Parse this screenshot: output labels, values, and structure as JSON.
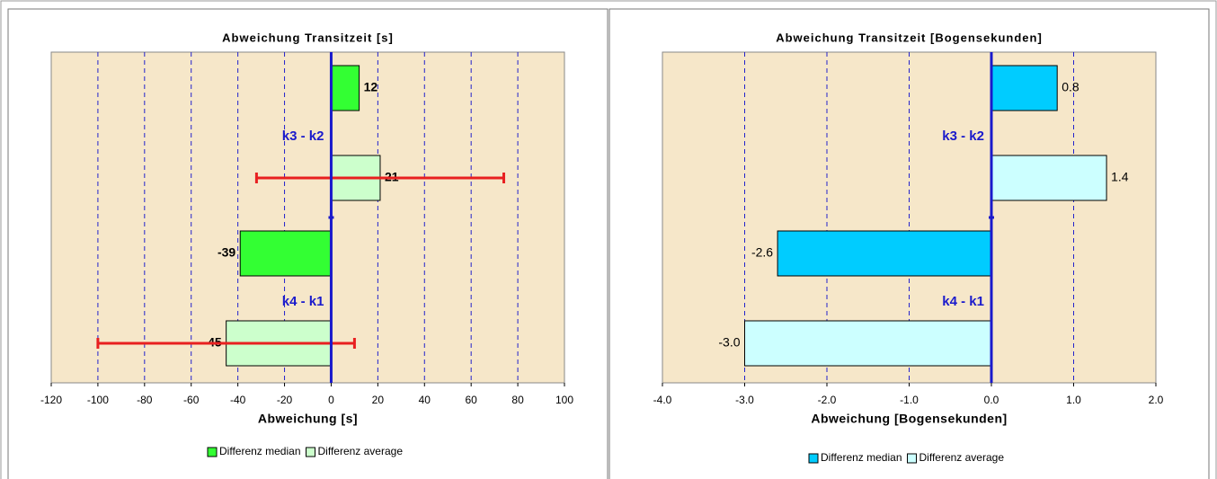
{
  "chart_data": [
    {
      "type": "bar",
      "orientation": "horizontal",
      "title": "Abweichung Transitzeit [s]",
      "xlabel": "Abweichung [s]",
      "categories": [
        "k3 - k2",
        "k4 - k1"
      ],
      "series": [
        {
          "name": "Differenz median",
          "color": "#33ff33",
          "values": [
            12,
            -39
          ]
        },
        {
          "name": "Differenz average",
          "color": "#ccffcc",
          "values": [
            21,
            -45
          ],
          "errors": [
            53,
            55
          ],
          "error_color": "#e82020"
        }
      ],
      "xlim": [
        -120,
        100
      ],
      "xticks": [
        -120,
        -100,
        -80,
        -60,
        -40,
        -20,
        0,
        20,
        40,
        60,
        80,
        100
      ],
      "grid": true
    },
    {
      "type": "bar",
      "orientation": "horizontal",
      "title": "Abweichung Transitzeit [Bogensekunden]",
      "xlabel": "Abweichung [Bogensekunden]",
      "categories": [
        "k3 - k2",
        "k4 - k1"
      ],
      "series": [
        {
          "name": "Differenz median",
          "color": "#00ccff",
          "values": [
            0.8,
            -2.6
          ]
        },
        {
          "name": "Differenz average",
          "color": "#ccffff",
          "values": [
            1.4,
            -3.0
          ],
          "value_labels": [
            "1.4",
            "-3.0"
          ]
        }
      ],
      "xlim": [
        -4,
        2
      ],
      "xticks": [
        {
          "value": -4,
          "label": "-4.0"
        },
        {
          "value": -3,
          "label": "-3.0"
        },
        {
          "value": -2,
          "label": "-2.0"
        },
        {
          "value": -1,
          "label": "-1.0"
        },
        {
          "value": 0,
          "label": "0.0"
        },
        {
          "value": 1,
          "label": "1.0"
        },
        {
          "value": 2,
          "label": "2.0"
        }
      ],
      "grid": true
    }
  ]
}
